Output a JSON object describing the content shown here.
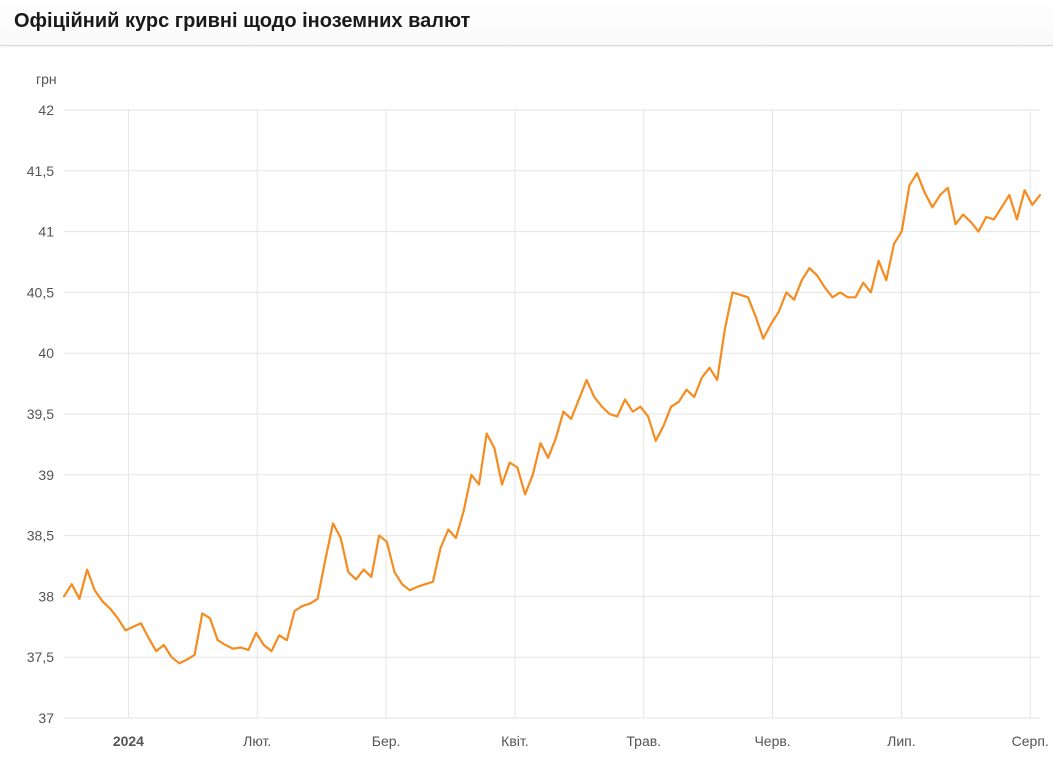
{
  "chart": {
    "type": "line",
    "title": "Офіційний курс гривні щодо іноземних валют",
    "y_unit_label": "грн",
    "background_color": "#ffffff",
    "line_color": "#f68b1f",
    "line_width": 2.2,
    "grid_color": "#e5e5e5",
    "axis_text_color": "#555555",
    "title_color": "#1a1a1a",
    "fontsize_title": 20,
    "fontsize_axis": 14,
    "ylim": [
      37,
      42
    ],
    "ytick_step": 0.5,
    "ytick_labels": [
      "37",
      "37,5",
      "38",
      "38,5",
      "39",
      "39,5",
      "40",
      "40,5",
      "41",
      "41,5",
      "42"
    ],
    "x_year_label": "2024",
    "x_tick_labels": [
      "2024",
      "Лют.",
      "Бер.",
      "Квіт.",
      "Трав.",
      "Черв.",
      "Лип.",
      "Серп."
    ],
    "x_tick_positions": [
      0.066,
      0.198,
      0.33,
      0.462,
      0.594,
      0.726,
      0.858,
      0.99
    ],
    "series": [
      38.0,
      38.1,
      37.98,
      38.22,
      38.05,
      37.96,
      37.9,
      37.82,
      37.72,
      37.75,
      37.78,
      37.66,
      37.55,
      37.6,
      37.5,
      37.45,
      37.48,
      37.52,
      37.86,
      37.82,
      37.64,
      37.6,
      37.57,
      37.58,
      37.56,
      37.7,
      37.6,
      37.55,
      37.68,
      37.64,
      37.88,
      37.92,
      37.94,
      37.98,
      38.3,
      38.6,
      38.48,
      38.2,
      38.14,
      38.22,
      38.16,
      38.5,
      38.45,
      38.2,
      38.1,
      38.05,
      38.08,
      38.1,
      38.12,
      38.4,
      38.55,
      38.48,
      38.7,
      39.0,
      38.92,
      39.34,
      39.22,
      38.92,
      39.1,
      39.06,
      38.84,
      39.0,
      39.26,
      39.14,
      39.3,
      39.52,
      39.46,
      39.62,
      39.78,
      39.64,
      39.56,
      39.5,
      39.48,
      39.62,
      39.52,
      39.56,
      39.48,
      39.28,
      39.4,
      39.56,
      39.6,
      39.7,
      39.64,
      39.8,
      39.88,
      39.78,
      40.2,
      40.5,
      40.48,
      40.46,
      40.3,
      40.12,
      40.24,
      40.34,
      40.5,
      40.44,
      40.6,
      40.7,
      40.64,
      40.54,
      40.46,
      40.5,
      40.46,
      40.46,
      40.58,
      40.5,
      40.76,
      40.6,
      40.9,
      41.0,
      41.38,
      41.48,
      41.32,
      41.2,
      41.3,
      41.36,
      41.06,
      41.14,
      41.08,
      41.0,
      41.12,
      41.1,
      41.2,
      41.3,
      41.1,
      41.34,
      41.22,
      41.3
    ]
  }
}
